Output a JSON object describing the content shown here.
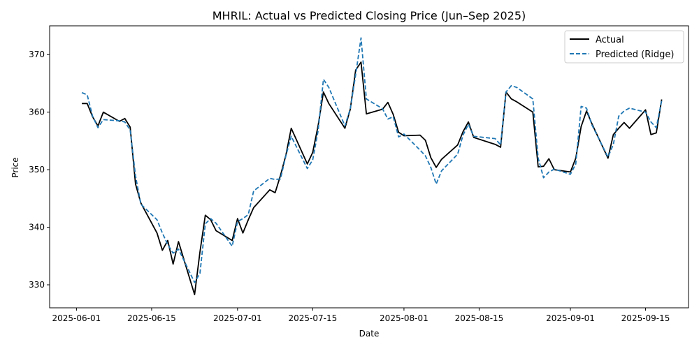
{
  "chart_data": {
    "type": "line",
    "title": "MHRIL: Actual vs Predicted Closing Price (Jun–Sep 2025)",
    "xlabel": "Date",
    "ylabel": "Price",
    "xlim": [
      "2025-05-27",
      "2025-09-23"
    ],
    "ylim": [
      326,
      375
    ],
    "xticks": [
      "2025-06-01",
      "2025-06-15",
      "2025-07-01",
      "2025-07-15",
      "2025-08-01",
      "2025-08-15",
      "2025-09-01",
      "2025-09-15"
    ],
    "yticks": [
      330,
      340,
      350,
      360,
      370
    ],
    "grid": false,
    "legend_position": "top-right",
    "series": [
      {
        "name": "Actual",
        "color": "#000000",
        "style": "solid",
        "points": [
          [
            "2025-06-02",
            361.5
          ],
          [
            "2025-06-03",
            361.5
          ],
          [
            "2025-06-04",
            359.2
          ],
          [
            "2025-06-05",
            357.6
          ],
          [
            "2025-06-06",
            360.0
          ],
          [
            "2025-06-09",
            358.4
          ],
          [
            "2025-06-10",
            358.9
          ],
          [
            "2025-06-11",
            357.4
          ],
          [
            "2025-06-12",
            347.5
          ],
          [
            "2025-06-13",
            344.2
          ],
          [
            "2025-06-16",
            339.0
          ],
          [
            "2025-06-17",
            336.0
          ],
          [
            "2025-06-18",
            337.7
          ],
          [
            "2025-06-19",
            333.6
          ],
          [
            "2025-06-20",
            337.5
          ],
          [
            "2025-06-23",
            328.3
          ],
          [
            "2025-06-24",
            335.7
          ],
          [
            "2025-06-25",
            342.1
          ],
          [
            "2025-06-26",
            341.3
          ],
          [
            "2025-06-27",
            339.4
          ],
          [
            "2025-06-30",
            337.7
          ],
          [
            "2025-07-01",
            341.5
          ],
          [
            "2025-07-02",
            339.0
          ],
          [
            "2025-07-03",
            341.3
          ],
          [
            "2025-07-04",
            343.4
          ],
          [
            "2025-07-07",
            346.5
          ],
          [
            "2025-07-08",
            346.0
          ],
          [
            "2025-07-09",
            349.0
          ],
          [
            "2025-07-10",
            352.5
          ],
          [
            "2025-07-11",
            357.2
          ],
          [
            "2025-07-14",
            351.0
          ],
          [
            "2025-07-15",
            353.0
          ],
          [
            "2025-07-16",
            357.6
          ],
          [
            "2025-07-17",
            363.5
          ],
          [
            "2025-07-18",
            361.5
          ],
          [
            "2025-07-21",
            357.2
          ],
          [
            "2025-07-22",
            360.5
          ],
          [
            "2025-07-23",
            367.3
          ],
          [
            "2025-07-24",
            368.7
          ],
          [
            "2025-07-25",
            359.7
          ],
          [
            "2025-07-28",
            360.5
          ],
          [
            "2025-07-29",
            361.7
          ],
          [
            "2025-07-30",
            359.6
          ],
          [
            "2025-07-31",
            356.5
          ],
          [
            "2025-08-01",
            355.9
          ],
          [
            "2025-08-04",
            356.0
          ],
          [
            "2025-08-05",
            355.1
          ],
          [
            "2025-08-06",
            352.1
          ],
          [
            "2025-08-07",
            350.4
          ],
          [
            "2025-08-08",
            351.8
          ],
          [
            "2025-08-11",
            354.3
          ],
          [
            "2025-08-12",
            356.6
          ],
          [
            "2025-08-13",
            358.3
          ],
          [
            "2025-08-14",
            355.6
          ],
          [
            "2025-08-18",
            354.4
          ],
          [
            "2025-08-19",
            353.9
          ],
          [
            "2025-08-20",
            363.5
          ],
          [
            "2025-08-21",
            362.3
          ],
          [
            "2025-08-22",
            361.8
          ],
          [
            "2025-08-25",
            360.0
          ],
          [
            "2025-08-26",
            350.5
          ],
          [
            "2025-08-27",
            350.6
          ],
          [
            "2025-08-28",
            351.9
          ],
          [
            "2025-08-29",
            350.0
          ],
          [
            "2025-09-01",
            349.6
          ],
          [
            "2025-09-02",
            352.0
          ],
          [
            "2025-09-03",
            357.5
          ],
          [
            "2025-09-04",
            360.2
          ],
          [
            "2025-09-05",
            358.0
          ],
          [
            "2025-09-08",
            352.0
          ],
          [
            "2025-09-09",
            356.1
          ],
          [
            "2025-09-10",
            357.2
          ],
          [
            "2025-09-11",
            358.2
          ],
          [
            "2025-09-12",
            357.2
          ],
          [
            "2025-09-15",
            360.4
          ],
          [
            "2025-09-16",
            356.1
          ],
          [
            "2025-09-17",
            356.4
          ],
          [
            "2025-09-18",
            362.2
          ]
        ]
      },
      {
        "name": "Predicted (Ridge)",
        "color": "#1f77b4",
        "style": "dashed",
        "points": [
          [
            "2025-06-02",
            363.4
          ],
          [
            "2025-06-03",
            363.0
          ],
          [
            "2025-06-04",
            359.3
          ],
          [
            "2025-06-05",
            357.3
          ],
          [
            "2025-06-06",
            358.7
          ],
          [
            "2025-06-09",
            358.5
          ],
          [
            "2025-06-10",
            358.3
          ],
          [
            "2025-06-11",
            356.9
          ],
          [
            "2025-06-12",
            348.9
          ],
          [
            "2025-06-13",
            344.0
          ],
          [
            "2025-06-16",
            341.3
          ],
          [
            "2025-06-17",
            339.0
          ],
          [
            "2025-06-18",
            337.0
          ],
          [
            "2025-06-19",
            335.5
          ],
          [
            "2025-06-20",
            336.2
          ],
          [
            "2025-06-23",
            330.4
          ],
          [
            "2025-06-24",
            332.0
          ],
          [
            "2025-06-25",
            340.6
          ],
          [
            "2025-06-26",
            341.5
          ],
          [
            "2025-06-27",
            340.7
          ],
          [
            "2025-06-30",
            336.7
          ],
          [
            "2025-07-01",
            341.0
          ],
          [
            "2025-07-02",
            341.5
          ],
          [
            "2025-07-03",
            342.2
          ],
          [
            "2025-07-04",
            346.3
          ],
          [
            "2025-07-07",
            348.5
          ],
          [
            "2025-07-08",
            348.3
          ],
          [
            "2025-07-09",
            348.4
          ],
          [
            "2025-07-10",
            352.4
          ],
          [
            "2025-07-11",
            355.8
          ],
          [
            "2025-07-14",
            350.2
          ],
          [
            "2025-07-15",
            351.7
          ],
          [
            "2025-07-16",
            356.7
          ],
          [
            "2025-07-17",
            365.7
          ],
          [
            "2025-07-18",
            364.3
          ],
          [
            "2025-07-21",
            357.6
          ],
          [
            "2025-07-22",
            360.6
          ],
          [
            "2025-07-23",
            366.5
          ],
          [
            "2025-07-24",
            372.9
          ],
          [
            "2025-07-25",
            362.3
          ],
          [
            "2025-07-28",
            360.6
          ],
          [
            "2025-07-29",
            358.8
          ],
          [
            "2025-07-30",
            359.2
          ],
          [
            "2025-07-31",
            355.7
          ],
          [
            "2025-08-01",
            356.2
          ],
          [
            "2025-08-04",
            353.4
          ],
          [
            "2025-08-05",
            352.4
          ],
          [
            "2025-08-06",
            350.4
          ],
          [
            "2025-08-07",
            347.5
          ],
          [
            "2025-08-08",
            349.8
          ],
          [
            "2025-08-11",
            352.7
          ],
          [
            "2025-08-12",
            356.0
          ],
          [
            "2025-08-13",
            357.9
          ],
          [
            "2025-08-14",
            355.8
          ],
          [
            "2025-08-18",
            355.4
          ],
          [
            "2025-08-19",
            354.3
          ],
          [
            "2025-08-20",
            363.5
          ],
          [
            "2025-08-21",
            364.6
          ],
          [
            "2025-08-22",
            364.3
          ],
          [
            "2025-08-25",
            362.3
          ],
          [
            "2025-08-26",
            352.0
          ],
          [
            "2025-08-27",
            348.6
          ],
          [
            "2025-08-28",
            349.6
          ],
          [
            "2025-08-29",
            350.1
          ],
          [
            "2025-09-01",
            349.2
          ],
          [
            "2025-09-02",
            351.0
          ],
          [
            "2025-09-03",
            361.0
          ],
          [
            "2025-09-04",
            360.7
          ],
          [
            "2025-09-05",
            357.8
          ],
          [
            "2025-09-08",
            352.2
          ],
          [
            "2025-09-09",
            354.4
          ],
          [
            "2025-09-10",
            359.3
          ],
          [
            "2025-09-11",
            360.2
          ],
          [
            "2025-09-12",
            360.7
          ],
          [
            "2025-09-15",
            360.0
          ],
          [
            "2025-09-16",
            358.3
          ],
          [
            "2025-09-17",
            357.3
          ],
          [
            "2025-09-18",
            362.0
          ]
        ]
      }
    ]
  }
}
